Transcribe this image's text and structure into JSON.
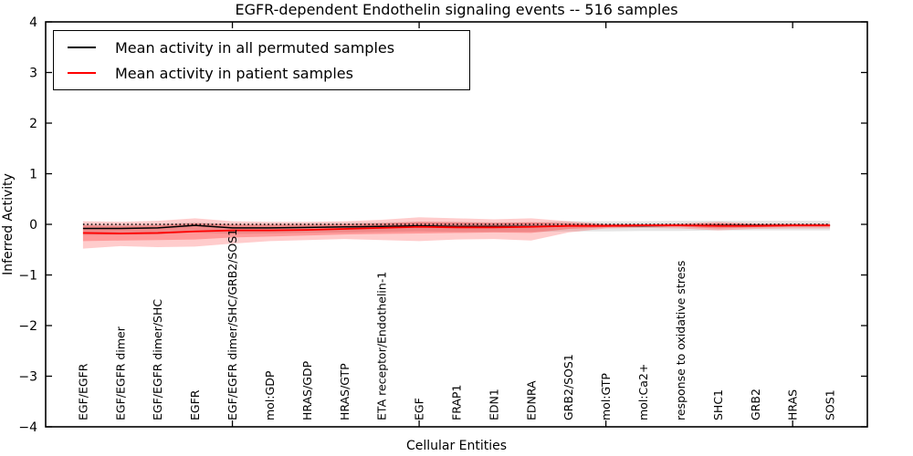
{
  "figure": {
    "title": "EGFR-dependent Endothelin signaling events -- 516 samples",
    "xlabel": "Cellular Entities",
    "ylabel": "Inferred Activity"
  },
  "legend": {
    "entries": [
      {
        "label": "Mean activity in all permuted samples",
        "color": "#000000"
      },
      {
        "label": "Mean activity in patient samples",
        "color": "#ff0000"
      }
    ]
  },
  "chart_data": {
    "type": "line",
    "title": "EGFR-dependent Endothelin signaling events -- 516 samples",
    "xlabel": "Cellular Entities",
    "ylabel": "Inferred Activity",
    "ylim": [
      -4,
      4
    ],
    "xlim": [
      0,
      22
    ],
    "grid": false,
    "legend_position": "upper left",
    "yticks": [
      {
        "v": 4,
        "label": "4"
      },
      {
        "v": 3,
        "label": "3"
      },
      {
        "v": 2,
        "label": "2"
      },
      {
        "v": 1,
        "label": "1"
      },
      {
        "v": 0,
        "label": "0"
      },
      {
        "v": -1,
        "label": "−1"
      },
      {
        "v": -2,
        "label": "−2"
      },
      {
        "v": -3,
        "label": "−3"
      },
      {
        "v": -4,
        "label": "−4"
      }
    ],
    "xticks": [
      5,
      10,
      15,
      20
    ],
    "zero_line": 0,
    "categories": [
      "EGF/EGFR",
      "EGF/EGFR dimer",
      "EGF/EGFR dimer/SHC",
      "EGFR",
      "EGF/EGFR dimer/SHC/GRB2/SOS1",
      "mol:GDP",
      "HRAS/GDP",
      "HRAS/GTP",
      "ETA receptor/Endothelin-1",
      "EGF",
      "FRAP1",
      "EDN1",
      "EDNRA",
      "GRB2/SOS1",
      "mol:GTP",
      "mol:Ca2+",
      "response to oxidative stress",
      "SHC1",
      "GRB2",
      "HRAS",
      "SOS1"
    ],
    "series": [
      {
        "name": "Mean activity in all permuted samples",
        "color": "#000000",
        "values": [
          -0.08,
          -0.08,
          -0.07,
          -0.02,
          -0.07,
          -0.07,
          -0.06,
          -0.05,
          -0.04,
          -0.03,
          -0.04,
          -0.04,
          -0.04,
          -0.03,
          -0.03,
          -0.03,
          -0.02,
          -0.02,
          -0.02,
          -0.02,
          -0.02
        ]
      },
      {
        "name": "Mean activity in patient samples",
        "color": "#ff0000",
        "values": [
          -0.17,
          -0.18,
          -0.17,
          -0.14,
          -0.12,
          -0.12,
          -0.11,
          -0.09,
          -0.07,
          -0.05,
          -0.06,
          -0.06,
          -0.05,
          -0.03,
          -0.03,
          -0.02,
          -0.02,
          -0.03,
          -0.03,
          -0.02,
          -0.02
        ]
      }
    ],
    "bands": [
      {
        "name": "permuted-std",
        "color": "#000000",
        "opacity": 0.1,
        "upper": [
          0.0,
          0.0,
          0.01,
          0.04,
          0.01,
          0.01,
          0.02,
          0.03,
          0.04,
          0.05,
          0.05,
          0.04,
          0.04,
          0.06,
          0.06,
          0.06,
          0.07,
          0.07,
          0.07,
          0.07,
          0.07
        ],
        "lower": [
          -0.21,
          -0.21,
          -0.2,
          -0.16,
          -0.19,
          -0.18,
          -0.17,
          -0.16,
          -0.15,
          -0.14,
          -0.15,
          -0.15,
          -0.15,
          -0.14,
          -0.14,
          -0.13,
          -0.13,
          -0.12,
          -0.12,
          -0.12,
          -0.12
        ]
      },
      {
        "name": "patient-outer",
        "color": "#ff0000",
        "opacity": 0.2,
        "upper": [
          0.06,
          0.05,
          0.07,
          0.12,
          0.06,
          0.05,
          0.05,
          0.06,
          0.09,
          0.14,
          0.12,
          0.1,
          0.12,
          0.06,
          0.01,
          0.01,
          0.02,
          0.05,
          0.02,
          0.02,
          0.02
        ],
        "lower": [
          -0.48,
          -0.43,
          -0.45,
          -0.44,
          -0.38,
          -0.33,
          -0.31,
          -0.29,
          -0.31,
          -0.33,
          -0.3,
          -0.29,
          -0.32,
          -0.16,
          -0.08,
          -0.07,
          -0.08,
          -0.12,
          -0.09,
          -0.08,
          -0.08
        ]
      },
      {
        "name": "patient-inner",
        "color": "#ff0000",
        "opacity": 0.25,
        "upper": [
          -0.02,
          -0.03,
          -0.02,
          0.02,
          -0.01,
          -0.01,
          -0.01,
          0.0,
          0.02,
          0.05,
          0.04,
          0.03,
          0.04,
          0.02,
          0.0,
          0.0,
          0.0,
          0.02,
          0.0,
          0.0,
          0.0
        ],
        "lower": [
          -0.33,
          -0.32,
          -0.31,
          -0.3,
          -0.26,
          -0.24,
          -0.22,
          -0.2,
          -0.19,
          -0.18,
          -0.17,
          -0.16,
          -0.17,
          -0.09,
          -0.06,
          -0.05,
          -0.05,
          -0.08,
          -0.06,
          -0.05,
          -0.05
        ]
      }
    ]
  }
}
